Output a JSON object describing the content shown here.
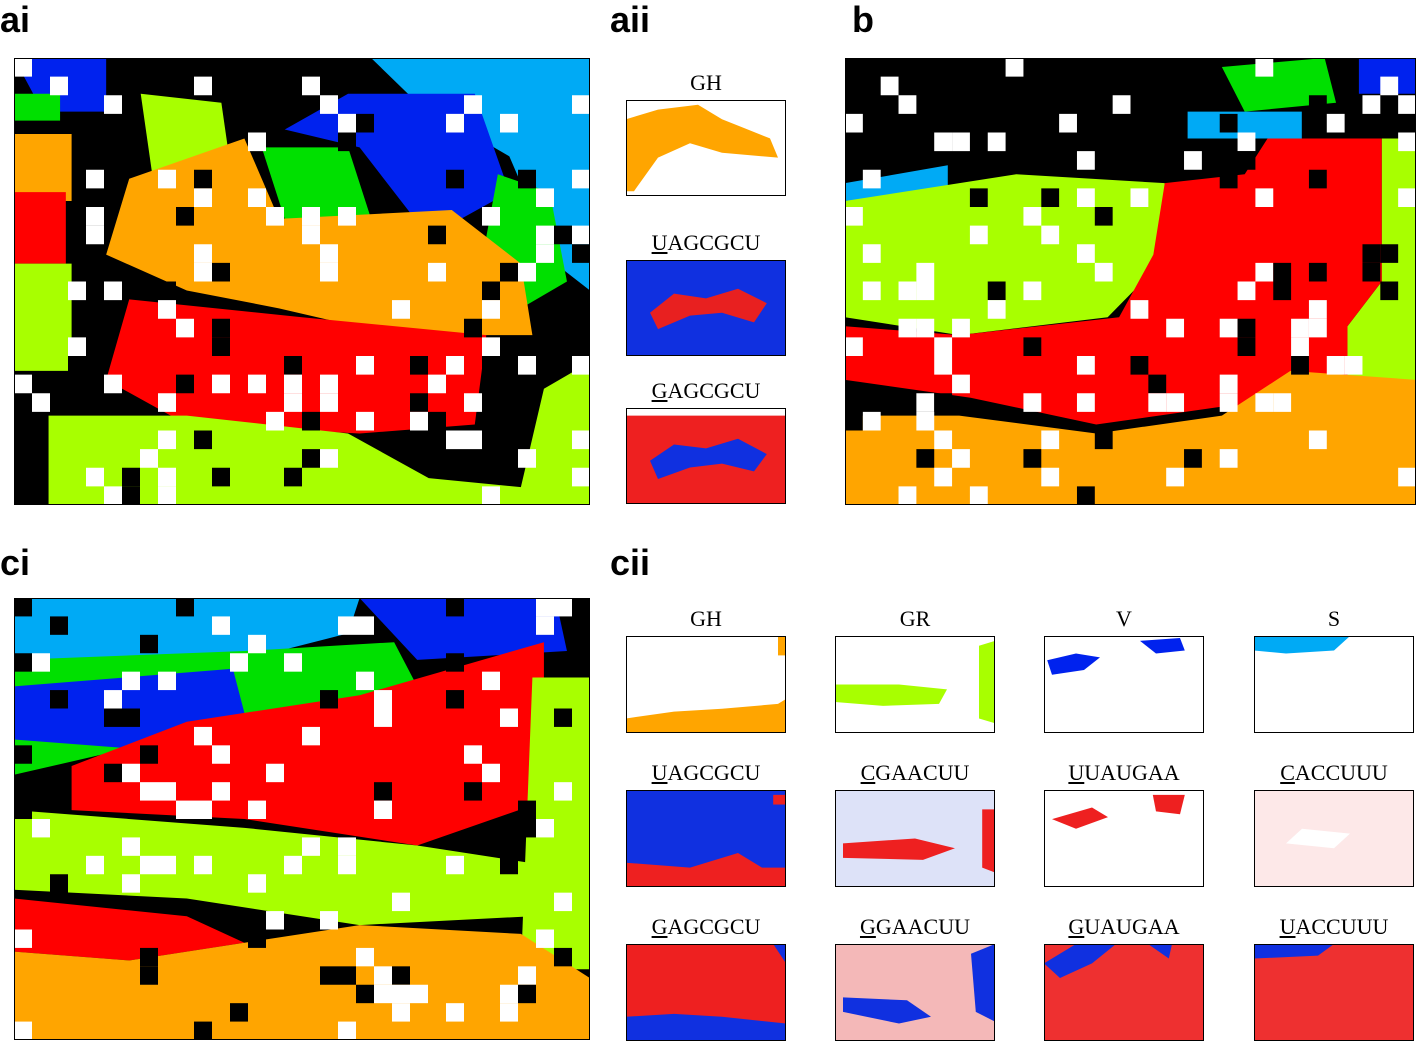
{
  "panels": [
    {
      "label": "ai"
    },
    {
      "label": "aii",
      "maps": [
        {
          "title": "GH"
        },
        {
          "title": "UAGCGCU"
        },
        {
          "title": "GAGCGCU"
        }
      ]
    },
    {
      "label": "b"
    },
    {
      "label": "ci"
    },
    {
      "label": "cii",
      "maps": [
        {
          "title": "GH"
        },
        {
          "title": "GR"
        },
        {
          "title": "V"
        },
        {
          "title": "S"
        },
        {
          "title": "UAGCGCU"
        },
        {
          "title": "CGAACUU"
        },
        {
          "title": "UUAUGAA"
        },
        {
          "title": "CACCUUU"
        },
        {
          "title": "GAGCGCU"
        },
        {
          "title": "GGAACUU"
        },
        {
          "title": "GUAUGAA"
        },
        {
          "title": "UACCUUU"
        }
      ]
    }
  ]
}
